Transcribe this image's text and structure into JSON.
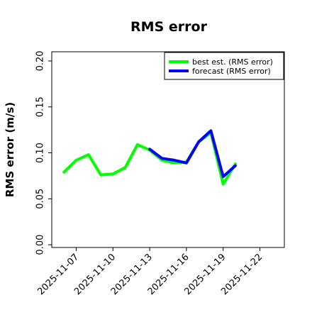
{
  "chart_data": {
    "type": "line",
    "title": "RMS error",
    "xlabel": "",
    "ylabel": "RMS error (m/s)",
    "x_ticks": [
      "2025-11-07",
      "2025-11-10",
      "2025-11-13",
      "2025-11-16",
      "2025-11-19",
      "2025-11-22"
    ],
    "highlighted_tick": "2025-11-13",
    "highlight_color": "#228b22",
    "y_ticks": [
      "0.00",
      "0.05",
      "0.10",
      "0.15",
      "0.20"
    ],
    "xlim": [
      "2025-11-05",
      "2025-11-24"
    ],
    "ylim": [
      -0.003,
      0.21
    ],
    "grid": false,
    "legend_position": "top-right",
    "series": [
      {
        "name": "best est. (RMS error)",
        "color": "#00ff00",
        "x": [
          "2025-11-06",
          "2025-11-07",
          "2025-11-08",
          "2025-11-09",
          "2025-11-10",
          "2025-11-11",
          "2025-11-12",
          "2025-11-13",
          "2025-11-14",
          "2025-11-15",
          "2025-11-16",
          "2025-11-17",
          "2025-11-18",
          "2025-11-19",
          "2025-11-20"
        ],
        "values": [
          0.079,
          0.092,
          0.098,
          0.076,
          0.077,
          0.084,
          0.109,
          0.103,
          0.092,
          0.089,
          0.09,
          0.112,
          0.122,
          0.066,
          0.088
        ]
      },
      {
        "name": "forecast (RMS error)",
        "color": "#0000ff",
        "x": [
          "2025-11-13",
          "2025-11-14",
          "2025-11-15",
          "2025-11-16",
          "2025-11-17",
          "2025-11-18",
          "2025-11-19",
          "2025-11-20"
        ],
        "values": [
          0.104,
          0.094,
          0.092,
          0.089,
          0.112,
          0.124,
          0.074,
          0.086
        ]
      }
    ]
  }
}
